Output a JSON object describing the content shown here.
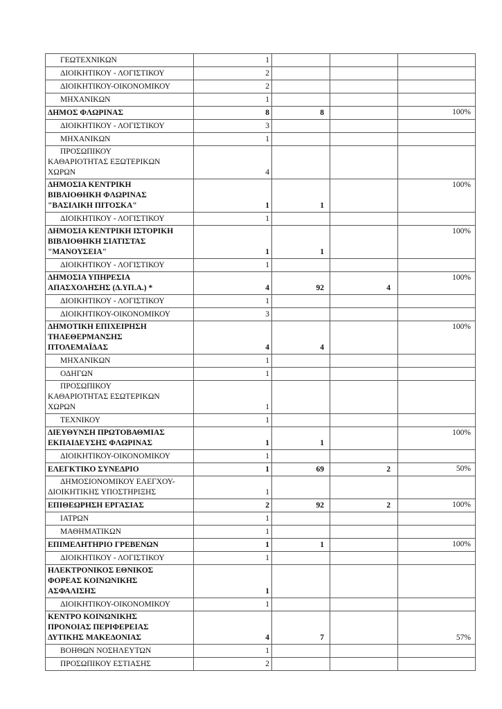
{
  "table": {
    "rows": [
      {
        "kind": "sub",
        "lines": [
          "ΓΕΩΤΕΧΝΙΚΩΝ"
        ],
        "c1": "1",
        "c2": "",
        "c3": "",
        "pct": ""
      },
      {
        "kind": "sub",
        "lines": [
          "ΔΙΟΙΚΗΤΙΚΟΥ - ΛΟΓΙΣΤΙΚΟΥ"
        ],
        "c1": "2",
        "c2": "",
        "c3": "",
        "pct": ""
      },
      {
        "kind": "sub",
        "lines": [
          "ΔΙΟΙΚΗΤΙΚΟΥ-ΟΙΚΟΝΟΜΙΚΟΥ"
        ],
        "c1": "2",
        "c2": "",
        "c3": "",
        "pct": ""
      },
      {
        "kind": "sub",
        "lines": [
          "ΜΗΧΑΝΙΚΩΝ"
        ],
        "c1": "1",
        "c2": "",
        "c3": "",
        "pct": ""
      },
      {
        "kind": "bold",
        "lines": [
          "ΔΗΜΟΣ ΦΛΩΡΙΝΑΣ"
        ],
        "c1": "8",
        "c2": "8",
        "c3": "",
        "pct": "100%"
      },
      {
        "kind": "sub",
        "lines": [
          "ΔΙΟΙΚΗΤΙΚΟΥ - ΛΟΓΙΣΤΙΚΟΥ"
        ],
        "c1": "3",
        "c2": "",
        "c3": "",
        "pct": ""
      },
      {
        "kind": "sub",
        "lines": [
          "ΜΗΧΑΝΙΚΩΝ"
        ],
        "c1": "1",
        "c2": "",
        "c3": "",
        "pct": ""
      },
      {
        "kind": "sub",
        "lines": [
          "ΠΡΟΣΩΠΙΚΟΥ",
          "ΚΑΘΑΡΙΟΤΗΤΑΣ ΕΞΩΤΕΡΙΚΩΝ",
          "ΧΩΡΩΝ"
        ],
        "c1": "4",
        "c2": "",
        "c3": "",
        "pct": ""
      },
      {
        "kind": "bold",
        "lines": [
          "ΔΗΜΟΣΙΑ ΚΕΝΤΡΙΚΗ",
          "ΒΙΒΛΙΟΘΗΚΗ ΦΛΩΡΙΝΑΣ",
          "\"ΒΑΣΙΛΙΚΗ ΠΙΤΟΣΚΑ\""
        ],
        "c1": "1",
        "c2": "1",
        "c3": "",
        "pct": "100%"
      },
      {
        "kind": "sub",
        "lines": [
          "ΔΙΟΙΚΗΤΙΚΟΥ - ΛΟΓΙΣΤΙΚΟΥ"
        ],
        "c1": "1",
        "c2": "",
        "c3": "",
        "pct": ""
      },
      {
        "kind": "bold",
        "lines": [
          "ΔΗΜΟΣΙΑ ΚΕΝΤΡΙΚΗ ΙΣΤΟΡΙΚΗ",
          "ΒΙΒΛΙΟΘΗΚΗ ΣΙΑΤΙΣΤΑΣ",
          "\"ΜΑΝΟΥΣΕΙΑ\""
        ],
        "c1": "1",
        "c2": "1",
        "c3": "",
        "pct": "100%"
      },
      {
        "kind": "sub",
        "lines": [
          "ΔΙΟΙΚΗΤΙΚΟΥ - ΛΟΓΙΣΤΙΚΟΥ"
        ],
        "c1": "1",
        "c2": "",
        "c3": "",
        "pct": ""
      },
      {
        "kind": "bold",
        "lines": [
          "ΔΗΜΟΣΙΑ ΥΠΗΡΕΣΙΑ",
          "ΑΠΑΣΧΟΛΗΣΗΣ (Δ.ΥΠ.Α.) *"
        ],
        "c1": "4",
        "c2": "92",
        "c3": "4",
        "pct": "100%"
      },
      {
        "kind": "sub",
        "lines": [
          "ΔΙΟΙΚΗΤΙΚΟΥ - ΛΟΓΙΣΤΙΚΟΥ"
        ],
        "c1": "1",
        "c2": "",
        "c3": "",
        "pct": ""
      },
      {
        "kind": "sub",
        "lines": [
          "ΔΙΟΙΚΗΤΙΚΟΥ-ΟΙΚΟΝΟΜΙΚΟΥ"
        ],
        "c1": "3",
        "c2": "",
        "c3": "",
        "pct": ""
      },
      {
        "kind": "bold",
        "lines": [
          "ΔΗΜΟΤΙΚΗ ΕΠΙΧΕΙΡΗΣΗ",
          "ΤΗΛΕΘΕΡΜΑΝΣΗΣ",
          "ΠΤΟΛΕΜΑΪΔΑΣ"
        ],
        "c1": "4",
        "c2": "4",
        "c3": "",
        "pct": "100%"
      },
      {
        "kind": "sub",
        "lines": [
          "ΜΗΧΑΝΙΚΩΝ"
        ],
        "c1": "1",
        "c2": "",
        "c3": "",
        "pct": ""
      },
      {
        "kind": "sub",
        "lines": [
          "ΟΔΗΓΩΝ"
        ],
        "c1": "1",
        "c2": "",
        "c3": "",
        "pct": ""
      },
      {
        "kind": "sub",
        "lines": [
          "ΠΡΟΣΩΠΙΚΟΥ",
          "ΚΑΘΑΡΙΟΤΗΤΑΣ ΕΣΩΤΕΡΙΚΩΝ",
          "ΧΩΡΩΝ"
        ],
        "c1": "1",
        "c2": "",
        "c3": "",
        "pct": ""
      },
      {
        "kind": "sub",
        "lines": [
          "ΤΕΧΝΙΚΟΥ"
        ],
        "c1": "1",
        "c2": "",
        "c3": "",
        "pct": ""
      },
      {
        "kind": "bold",
        "lines": [
          "ΔΙΕΥΘΥΝΣΗ ΠΡΩΤΟΒΑΘΜΙΑΣ",
          "ΕΚΠΑΙΔΕΥΣΗΣ ΦΛΩΡΙΝΑΣ"
        ],
        "c1": "1",
        "c2": "1",
        "c3": "",
        "pct": "100%"
      },
      {
        "kind": "sub",
        "lines": [
          "ΔΙΟΙΚΗΤΙΚΟΥ-ΟΙΚΟΝΟΜΙΚΟΥ"
        ],
        "c1": "1",
        "c2": "",
        "c3": "",
        "pct": ""
      },
      {
        "kind": "bold",
        "lines": [
          "ΕΛΕΓΚΤΙΚΟ ΣΥΝΕΔΡΙΟ"
        ],
        "c1": "1",
        "c2": "69",
        "c3": "2",
        "pct": "50%"
      },
      {
        "kind": "sub",
        "lines": [
          "ΔΗΜΟΣΙΟΝΟΜΙΚΟΥ ΕΛΕΓΧΟΥ-",
          "ΔΙΟΙΚΗΤΙΚΗΣ ΥΠΟΣΤΗΡΙΞΗΣ"
        ],
        "c1": "1",
        "c2": "",
        "c3": "",
        "pct": ""
      },
      {
        "kind": "bold",
        "lines": [
          "ΕΠΙΘΕΩΡΗΣΗ ΕΡΓΑΣΙΑΣ"
        ],
        "c1": "2",
        "c2": "92",
        "c3": "2",
        "pct": "100%"
      },
      {
        "kind": "sub",
        "lines": [
          "ΙΑΤΡΩΝ"
        ],
        "c1": "1",
        "c2": "",
        "c3": "",
        "pct": ""
      },
      {
        "kind": "sub",
        "lines": [
          "ΜΑΘΗΜΑΤΙΚΩΝ"
        ],
        "c1": "1",
        "c2": "",
        "c3": "",
        "pct": ""
      },
      {
        "kind": "bold",
        "lines": [
          "ΕΠΙΜΕΛΗΤΗΡΙΟ ΓΡΕΒΕΝΩΝ"
        ],
        "c1": "1",
        "c2": "1",
        "c3": "",
        "pct": "100%"
      },
      {
        "kind": "sub",
        "lines": [
          "ΔΙΟΙΚΗΤΙΚΟΥ - ΛΟΓΙΣΤΙΚΟΥ"
        ],
        "c1": "1",
        "c2": "",
        "c3": "",
        "pct": ""
      },
      {
        "kind": "bold",
        "lines": [
          "ΗΛΕΚΤΡΟΝΙΚΟΣ ΕΘΝΙΚΟΣ",
          "ΦΟΡΕΑΣ ΚΟΙΝΩΝΙΚΗΣ",
          "ΑΣΦΑΛΙΣΗΣ"
        ],
        "c1": "1",
        "c2": "",
        "c3": "",
        "pct": ""
      },
      {
        "kind": "sub",
        "lines": [
          "ΔΙΟΙΚΗΤΙΚΟΥ-ΟΙΚΟΝΟΜΙΚΟΥ"
        ],
        "c1": "1",
        "c2": "",
        "c3": "",
        "pct": ""
      },
      {
        "kind": "bold",
        "lines": [
          "ΚΕΝΤΡΟ ΚΟΙΝΩΝΙΚΗΣ",
          "ΠΡΟΝΟΙΑΣ ΠΕΡΙΦΕΡΕΙΑΣ",
          "ΔΥΤΙΚΗΣ ΜΑΚΕΔΟΝΙΑΣ"
        ],
        "c1": "4",
        "c2": "7",
        "c3": "",
        "pct": "57%"
      },
      {
        "kind": "sub",
        "lines": [
          "ΒΟΗΘΩΝ ΝΟΣΗΛΕΥΤΩΝ"
        ],
        "c1": "1",
        "c2": "",
        "c3": "",
        "pct": ""
      },
      {
        "kind": "sub",
        "lines": [
          "ΠΡΟΣΩΠΙΚΟΥ ΕΣΤΙΑΣΗΣ"
        ],
        "c1": "2",
        "c2": "",
        "c3": "",
        "pct": ""
      }
    ]
  }
}
